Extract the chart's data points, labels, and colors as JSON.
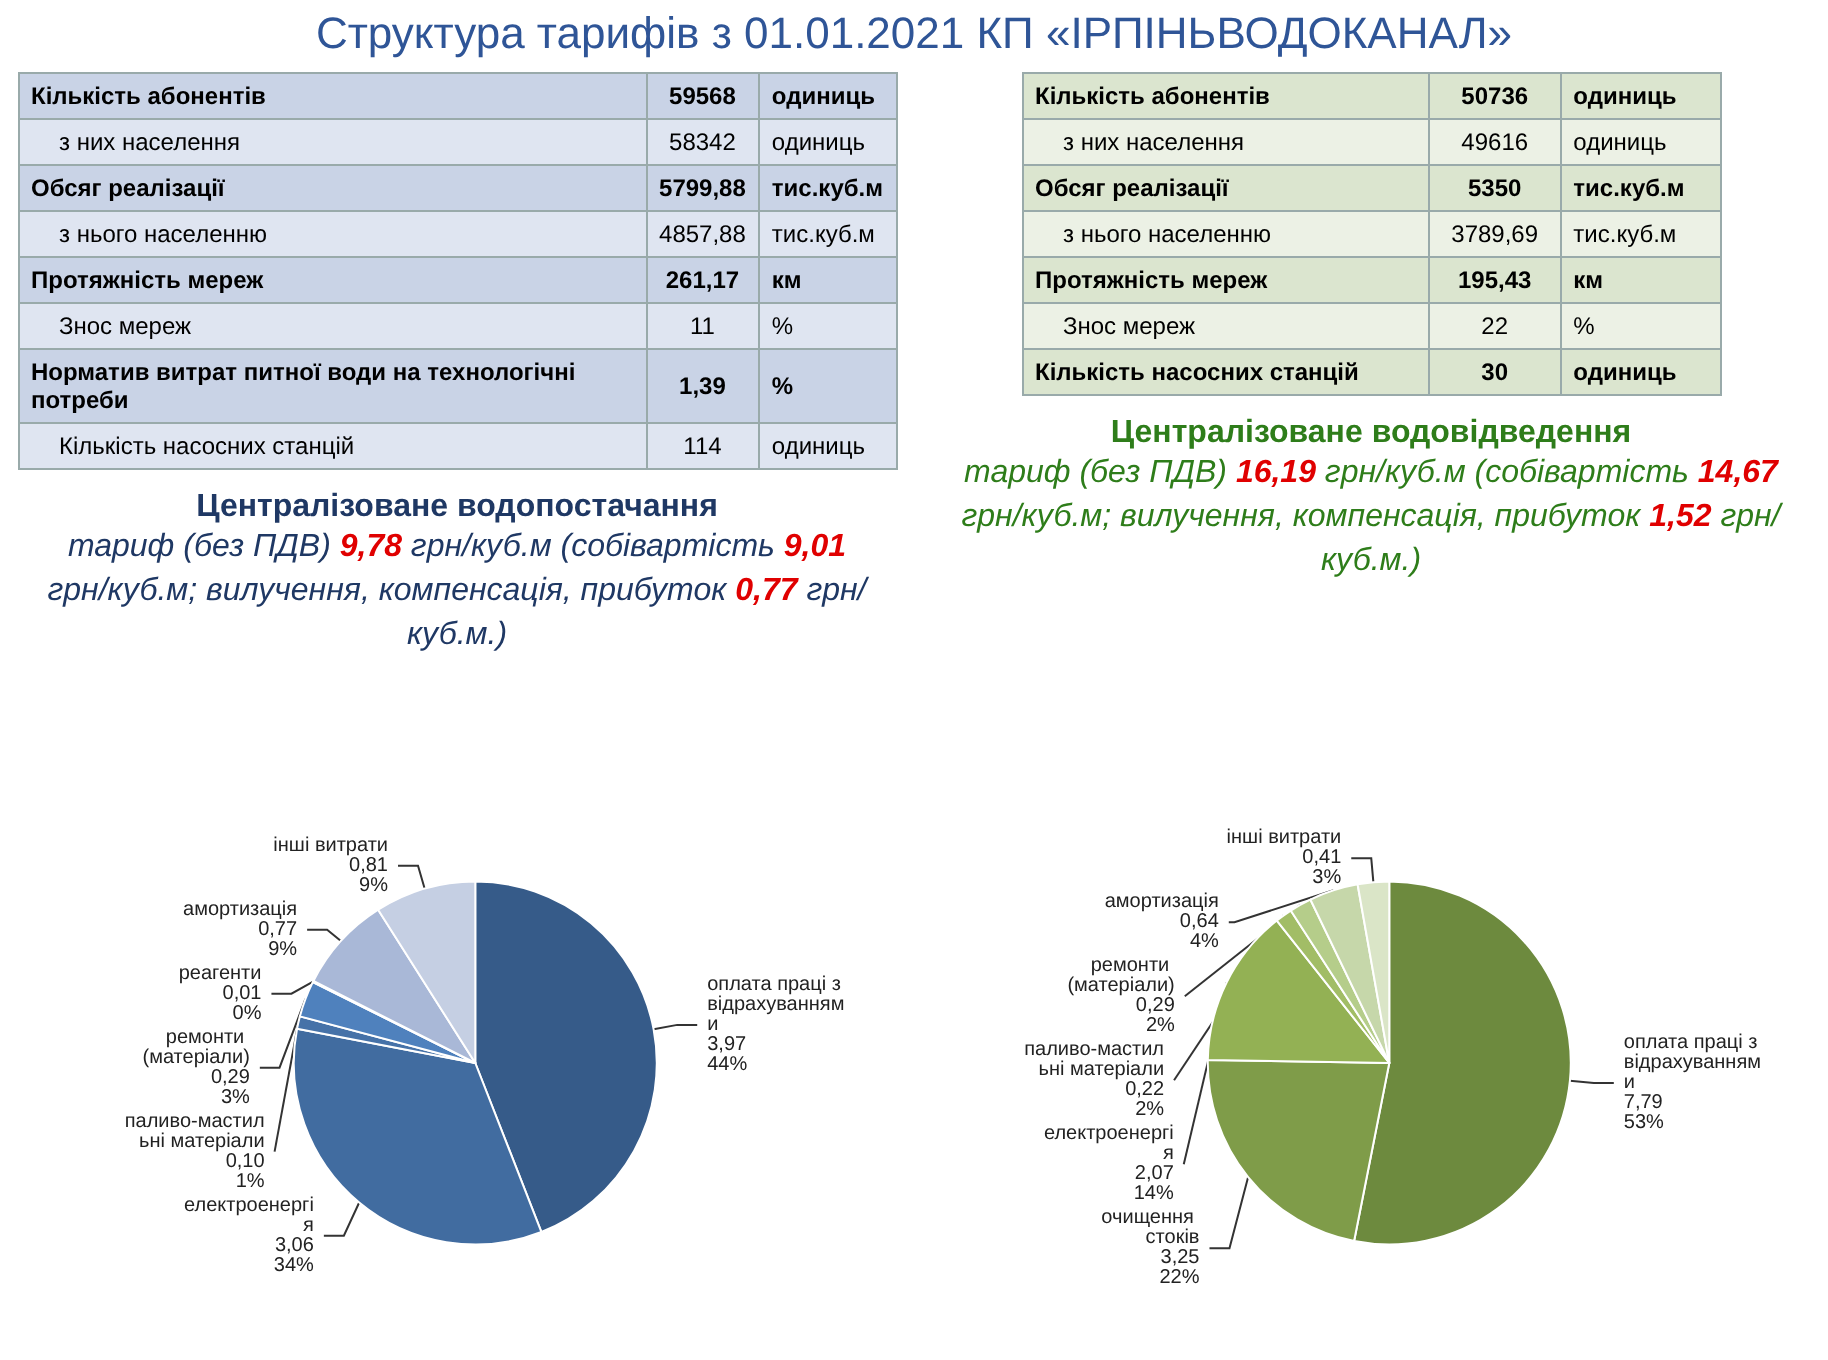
{
  "chart_data": [
    {
      "type": "pie",
      "title": "Централізоване  водопостачання",
      "subtitle": "тариф (без ПДВ) 9,78 грн/куб.м (собівартість 9,01 грн/куб.м; вилучення, компенсація, прибуток 0,77 грн/куб.м.)",
      "annotations": [
        "Структура тарифів з 01.01.2021  КП «ІРПІНЬВОДОКАНАЛ»",
        "Кількість абонентів",
        "59568",
        "одиниць",
        "з них населення",
        "58342",
        "одиниць",
        "Обсяг реалізації",
        "5799,88",
        "тис.куб.м",
        "з нього населенню",
        "4857,88",
        "тис.куб.м",
        "Протяжність мереж",
        "261,17",
        "км",
        "Знос мереж",
        "11",
        "%",
        "Норматив витрат питної води на технологічні потреби",
        "1,39",
        "%",
        "Кількість  насосних станцій",
        "114",
        "одиниць"
      ],
      "categories": [
        "оплата праці з відрахуваннями",
        "електроенергія",
        "паливо-мастильні матеріали",
        "ремонти (матеріали)",
        "реагенти",
        "амортизація",
        "інші витрати"
      ],
      "values": [
        3.97,
        3.06,
        0.1,
        0.29,
        0.01,
        0.77,
        0.81
      ],
      "value_labels": [
        "3,97\n44%",
        "3,06\n34%",
        "0,10\n1%",
        "0,29\n3%",
        "0,01\n0%",
        "0,77\n9%",
        "0,81\n9%"
      ],
      "colors": [
        "#365b89",
        "#416ca0",
        "#4672a8",
        "#4f81bd",
        "#8fa6cc",
        "#a9b8d7",
        "#c5cfe3"
      ]
    },
    {
      "type": "pie",
      "title": "Централізоване  водовідведення",
      "subtitle": "тариф (без ПДВ) 16,19 грн/куб.м (собівартість 14,67 грн/куб.м; вилучення, компенсація, прибуток 1,52 грн/куб.м.)",
      "annotations": [
        "Кількість абонентів",
        "50736",
        "одиниць",
        "з них населення",
        "49616",
        "одиниць",
        "Обсяг реалізації",
        "5350",
        "тис.куб.м",
        "з нього населенню",
        "3789,69",
        "тис.куб.м",
        "Протяжність мереж",
        "195,43",
        "км",
        "Знос мереж",
        "22",
        "%",
        "Кількість  насосних станцій",
        "30",
        "одиниць"
      ],
      "categories": [
        "оплата праці з відрахуваннями",
        "очищення стоків",
        "електроенергія",
        "паливо-мастильні матеріали",
        "ремонти (матеріали)",
        "амортизація",
        "інші витрати"
      ],
      "values": [
        7.79,
        3.25,
        2.07,
        0.22,
        0.29,
        0.64,
        0.41
      ],
      "value_labels": [
        "7,79\n53%",
        "3,25\n22%",
        "2,07\n14%",
        "0,22\n2%",
        "0,29\n2%",
        "0,64\n4%",
        "0,41\n3%"
      ],
      "colors": [
        "#6d8a3e",
        "#7f9c49",
        "#93b154",
        "#a2bd66",
        "#b5cd8a",
        "#c6d7aa",
        "#dae5c7"
      ]
    }
  ]
}
